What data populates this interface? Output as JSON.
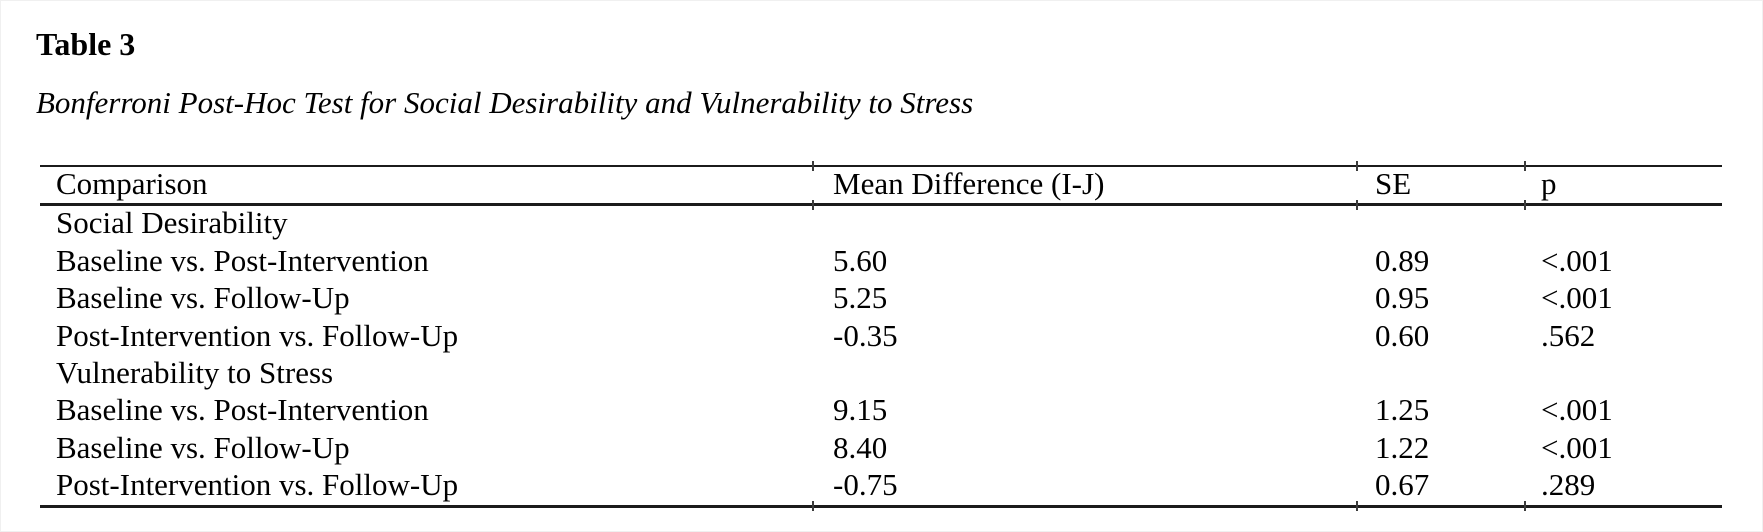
{
  "page": {
    "title": "Table 3",
    "subtitle": "Bonferroni Post-Hoc Test for Social Desirability and Vulnerability to Stress"
  },
  "table": {
    "columns": [
      "Comparison",
      "Mean Difference (I-J)",
      "SE",
      "p"
    ],
    "sections": [
      {
        "header": "Social Desirability",
        "rows": [
          {
            "comparison": "Baseline vs. Post-Intervention",
            "mean_difference": "5.60",
            "se": "0.89",
            "p": "<.001"
          },
          {
            "comparison": "Baseline vs. Follow-Up",
            "mean_difference": "5.25",
            "se": "0.95",
            "p": "<.001"
          },
          {
            "comparison": "Post-Intervention vs. Follow-Up",
            "mean_difference": "-0.35",
            "se": "0.60",
            "p": ".562"
          }
        ]
      },
      {
        "header": "Vulnerability to Stress",
        "rows": [
          {
            "comparison": "Baseline vs. Post-Intervention",
            "mean_difference": "9.15",
            "se": "1.25",
            "p": "<.001"
          },
          {
            "comparison": "Baseline vs. Follow-Up",
            "mean_difference": "8.40",
            "se": "1.22",
            "p": "<.001"
          },
          {
            "comparison": "Post-Intervention vs. Follow-Up",
            "mean_difference": "-0.75",
            "se": "0.67",
            "p": ".289"
          }
        ]
      }
    ]
  }
}
